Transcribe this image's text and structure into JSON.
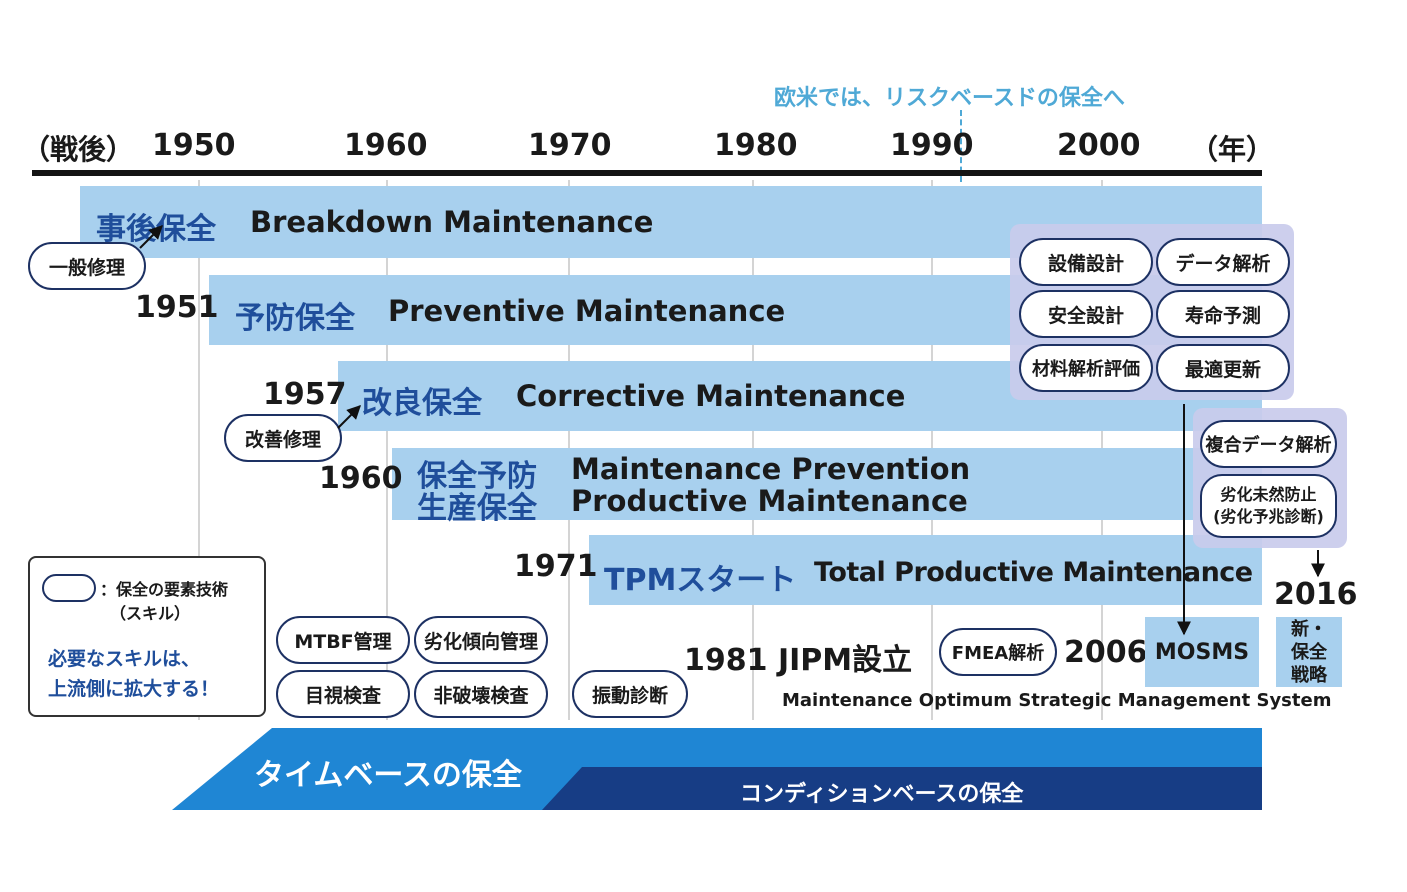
{
  "header": {
    "left_label": "（戦後）",
    "right_label": "（年）",
    "years": [
      "1950",
      "1960",
      "1970",
      "1980",
      "1990",
      "2000"
    ],
    "risk_note": "欧米では、リスクベースドの保全へ"
  },
  "eras": [
    {
      "year": "",
      "jp": "事後保全",
      "en": "Breakdown Maintenance"
    },
    {
      "year": "1951",
      "jp": "予防保全",
      "en": "Preventive Maintenance"
    },
    {
      "year": "1957",
      "jp": "改良保全",
      "en": "Corrective Maintenance"
    },
    {
      "year": "1960",
      "jp": "保全予防",
      "jp2": "生産保全",
      "en": "Maintenance Prevention",
      "en2": "Productive Maintenance"
    },
    {
      "year": "1971",
      "jp": "TPMスタート",
      "en": "Total Productive Maintenance"
    }
  ],
  "skills": {
    "general_repair": "一般修理",
    "improvement_repair": "改善修理",
    "mtbf": "MTBF管理",
    "deterioration_trend": "劣化傾向管理",
    "visual_inspection": "目視検査",
    "ndt": "非破壊検査",
    "vibration": "振動診断",
    "fmea": "FMEA解析",
    "equipment_design": "設備設計",
    "data_analysis": "データ解析",
    "safety_design": "安全設計",
    "life_prediction": "寿命予測",
    "material_analysis": "材料解析評価",
    "optimal_renewal": "最適更新",
    "composite_data": "複合データ解析",
    "prevent_deterioration_1": "劣化未然防止",
    "prevent_deterioration_2": "(劣化予兆診断)"
  },
  "milestones": {
    "jipm": "1981 JIPM設立",
    "year_2006": "2006",
    "mosms": "MOSMS",
    "mosms_full": "Maintenance Optimum Strategic Management System",
    "year_2016": "2016",
    "new_strategy": "新・\n保全\n戦略"
  },
  "legend": {
    "symbol_label": "：保全の要素技術",
    "symbol_sub": "（スキル）",
    "note_line1": "必要なスキルは、",
    "note_line2": "上流側に拡大する！"
  },
  "bottom": {
    "time_based": "タイムベースの保全",
    "condition_based": "コンディションベースの保全"
  },
  "colors": {
    "band": "#a8d0ee",
    "jp_text": "#1f4e9b",
    "pill_border": "#1d3163",
    "panel": "#c9cbeb",
    "time_based": "#1f86d4",
    "condition_based": "#173d85",
    "note": "#4fa9d6"
  }
}
